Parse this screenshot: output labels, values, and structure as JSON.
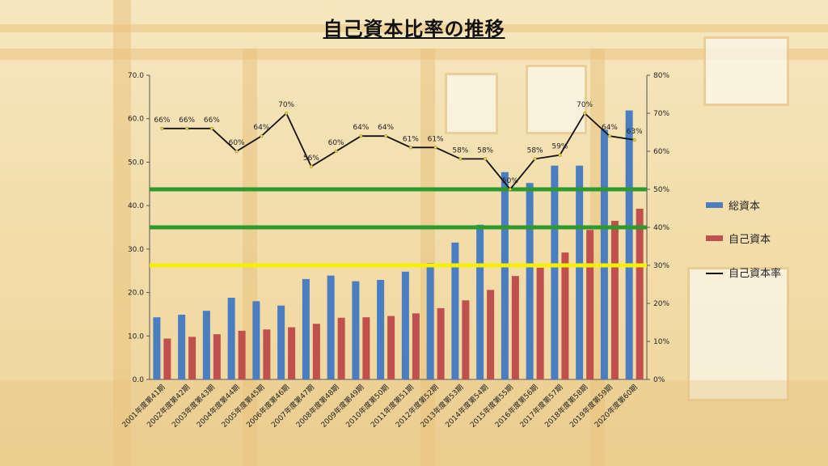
{
  "page_title": "自己資本比率の推移",
  "chart_data": {
    "type": "bar",
    "title": "自己資本比率の推移",
    "categories": [
      "2001年度第41期",
      "2002年度第42期",
      "2003年度第43期",
      "2004年度第44期",
      "2005年度第45期",
      "2006年度第46期",
      "2007年度第47期",
      "2008年度第48期",
      "2009年度第49期",
      "2010年度第50期",
      "2011年度第51期",
      "2012年度第52期",
      "2013年度第53期",
      "2014年度第54期",
      "2015年度第55期",
      "2016年度第56期",
      "2017年度第57期",
      "2018年度第58期",
      "2019年度第59期",
      "2020年度第60期"
    ],
    "series": [
      {
        "name": "総資本",
        "color": "#4a7ec0",
        "axis": "left",
        "values": [
          14.3,
          14.9,
          15.8,
          18.8,
          18.0,
          17.0,
          23.1,
          23.9,
          22.6,
          22.9,
          24.8,
          26.8,
          31.5,
          35.6,
          47.7,
          45.2,
          49.2,
          49.2,
          57.5,
          61.9
        ]
      },
      {
        "name": "自己資本",
        "color": "#c0504d",
        "axis": "left",
        "values": [
          9.4,
          9.8,
          10.4,
          11.2,
          11.5,
          12.0,
          12.8,
          14.2,
          14.3,
          14.6,
          15.2,
          16.4,
          18.2,
          20.6,
          23.8,
          25.7,
          29.2,
          34.4,
          36.5,
          39.3
        ]
      },
      {
        "name": "自己資本率",
        "color": "#111111",
        "axis": "right",
        "type": "line",
        "values": [
          66,
          66,
          66,
          60,
          64,
          70,
          56,
          60,
          64,
          64,
          61,
          61,
          58,
          58,
          50,
          58,
          59,
          70,
          64,
          63
        ],
        "labels": [
          "66%",
          "66%",
          "66%",
          "60%",
          "64%",
          "70%",
          "56%",
          "60%",
          "64%",
          "64%",
          "61%",
          "61%",
          "58%",
          "58%",
          "50%",
          "58%",
          "59%",
          "70%",
          "64%",
          "63%"
        ]
      }
    ],
    "y_left": {
      "min": 0,
      "max": 70,
      "ticks": [
        "0.0",
        "10.0",
        "20.0",
        "30.0",
        "40.0",
        "50.0",
        "60.0",
        "70.0"
      ]
    },
    "y_right": {
      "min": 0,
      "max": 80,
      "ticks": [
        "0%",
        "10%",
        "20%",
        "30%",
        "40%",
        "50%",
        "60%",
        "70%",
        "80%"
      ]
    },
    "reference_lines": [
      {
        "value": 50,
        "axis": "right",
        "color": "#2e9a2e"
      },
      {
        "value": 40,
        "axis": "right",
        "color": "#2e9a2e"
      },
      {
        "value": 30,
        "axis": "right",
        "color": "#f5f000"
      }
    ],
    "legend_position": "right"
  }
}
